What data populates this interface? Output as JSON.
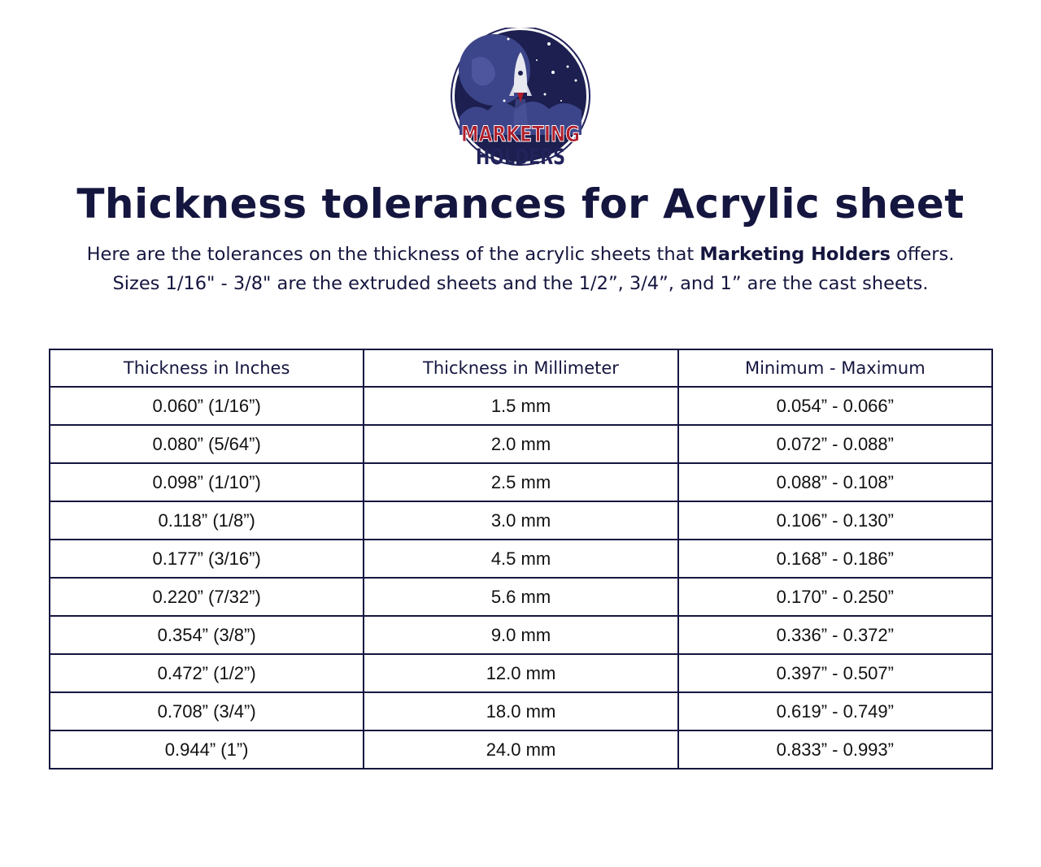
{
  "logo": {
    "line1": "MARKETING",
    "line2": "HOLDERS",
    "colors": {
      "navy": "#22235a",
      "red": "#b01e2a",
      "sky": "#1c1f4f"
    }
  },
  "title": "Thickness tolerances for Acrylic sheet",
  "intro": {
    "line1_before": "Here are the tolerances on the thickness of the acrylic sheets that ",
    "line1_bold": "Marketing Holders",
    "line1_after": " offers.",
    "line2": "Sizes 1/16\" - 3/8\" are the extruded sheets and the 1/2”, 3/4”, and 1” are the cast sheets."
  },
  "table": {
    "headers": [
      "Thickness in Inches",
      "Thickness in Millimeter",
      "Minimum - Maximum"
    ],
    "rows": [
      [
        "0.060” (1/16”)",
        "1.5 mm",
        "0.054” - 0.066”"
      ],
      [
        "0.080” (5/64”)",
        "2.0 mm",
        "0.072” - 0.088”"
      ],
      [
        "0.098” (1/10”)",
        "2.5 mm",
        "0.088” - 0.108”"
      ],
      [
        "0.118” (1/8”)",
        "3.0 mm",
        "0.106” - 0.130”"
      ],
      [
        "0.177” (3/16”)",
        "4.5 mm",
        "0.168” - 0.186”"
      ],
      [
        "0.220” (7/32”)",
        "5.6 mm",
        "0.170” - 0.250”"
      ],
      [
        "0.354” (3/8”)",
        "9.0 mm",
        "0.336” - 0.372”"
      ],
      [
        "0.472” (1/2”)",
        "12.0 mm",
        "0.397” - 0.507”"
      ],
      [
        "0.708” (3/4”)",
        "18.0 mm",
        "0.619” - 0.749”"
      ],
      [
        "0.944” (1”)",
        "24.0 mm",
        "0.833” - 0.993”"
      ]
    ]
  }
}
